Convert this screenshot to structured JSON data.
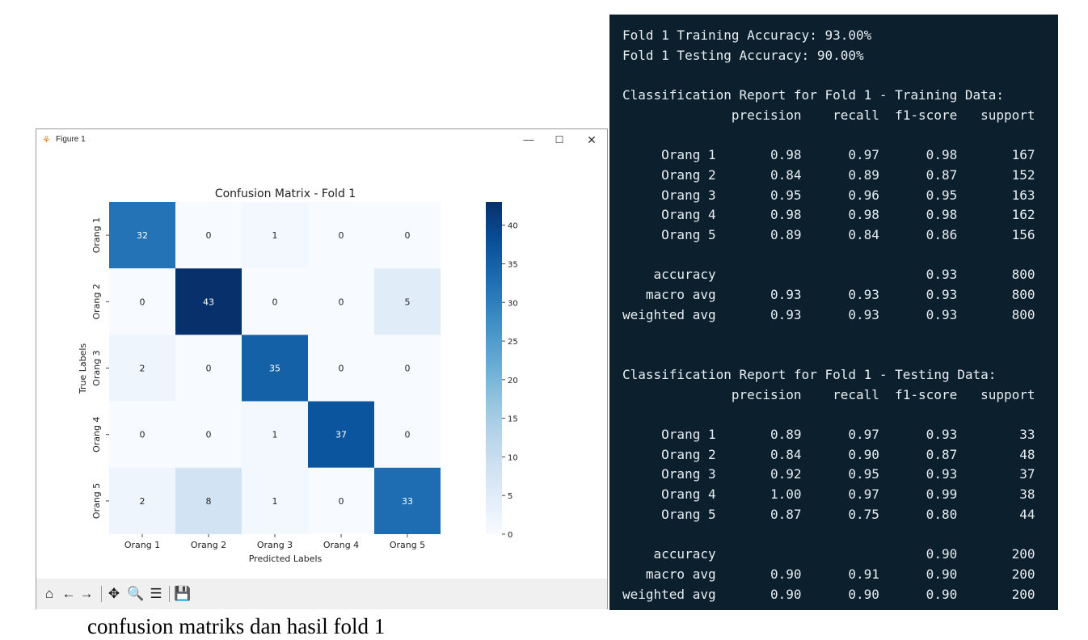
{
  "window": {
    "title": "Figure 1",
    "minimize_glyph": "—",
    "maximize_glyph": "☐",
    "close_glyph": "✕",
    "app_icon": "matplotlib-figure-icon"
  },
  "chart_data": {
    "type": "heatmap",
    "title": "Confusion Matrix - Fold 1",
    "xlabel": "Predicted Labels",
    "ylabel": "True Labels",
    "x_categories": [
      "Orang 1",
      "Orang 2",
      "Orang 3",
      "Orang 4",
      "Orang 5"
    ],
    "y_categories": [
      "Orang 1",
      "Orang 2",
      "Orang 3",
      "Orang 4",
      "Orang 5"
    ],
    "matrix": [
      [
        32,
        0,
        1,
        0,
        0
      ],
      [
        0,
        43,
        0,
        0,
        5
      ],
      [
        2,
        0,
        35,
        0,
        0
      ],
      [
        0,
        0,
        1,
        37,
        0
      ],
      [
        2,
        8,
        1,
        0,
        33
      ]
    ],
    "colormap": "Blues",
    "colorbar_range": [
      0,
      43
    ],
    "colorbar_ticks": [
      0,
      5,
      10,
      15,
      20,
      25,
      30,
      35,
      40
    ]
  },
  "toolbar": [
    {
      "name": "home-icon",
      "glyph": "⌂"
    },
    {
      "name": "back-icon",
      "glyph": "←"
    },
    {
      "name": "forward-icon",
      "glyph": "→"
    },
    {
      "name": "pan-icon",
      "glyph": "✥"
    },
    {
      "name": "zoom-icon",
      "glyph": "🔍"
    },
    {
      "name": "configure-subplots-icon",
      "glyph": "☰"
    },
    {
      "name": "save-icon",
      "glyph": "💾"
    }
  ],
  "terminal": {
    "lines": [
      "Fold 1 Training Accuracy: 93.00%",
      "Fold 1 Testing Accuracy: 90.00%",
      "",
      "Classification Report for Fold 1 - Training Data:",
      "              precision    recall  f1-score   support",
      "",
      "     Orang 1       0.98      0.97      0.98       167",
      "     Orang 2       0.84      0.89      0.87       152",
      "     Orang 3       0.95      0.96      0.95       163",
      "     Orang 4       0.98      0.98      0.98       162",
      "     Orang 5       0.89      0.84      0.86       156",
      "",
      "    accuracy                           0.93       800",
      "   macro avg       0.93      0.93      0.93       800",
      "weighted avg       0.93      0.93      0.93       800",
      "",
      "",
      "Classification Report for Fold 1 - Testing Data:",
      "              precision    recall  f1-score   support",
      "",
      "     Orang 1       0.89      0.97      0.93        33",
      "     Orang 2       0.84      0.90      0.87        48",
      "     Orang 3       0.92      0.95      0.93        37",
      "     Orang 4       1.00      0.97      0.99        38",
      "     Orang 5       0.87      0.75      0.80        44",
      "",
      "    accuracy                           0.90       200",
      "   macro avg       0.90      0.91      0.90       200",
      "weighted avg       0.90      0.90      0.90       200"
    ]
  },
  "caption": "confusion matriks dan hasil fold 1",
  "colors": {
    "terminal_bg": "#0c1f2c",
    "terminal_fg": "#e8eef2",
    "toolbar_bg": "#f0f0f0"
  }
}
